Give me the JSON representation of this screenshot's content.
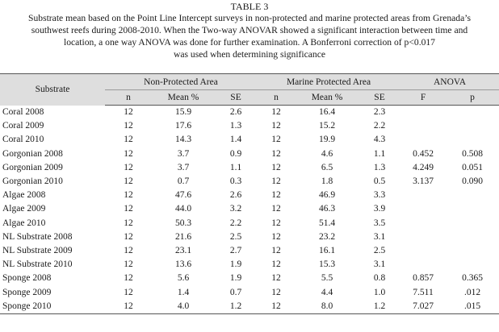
{
  "table_label": "TABLE 3",
  "caption_lines": [
    "Substrate mean based on the Point Line Intercept surveys in non-protected and marine protected areas from Grenada’s",
    "southwest reefs during 2008-2010. When the Two-way ANOVAR showed a significant interaction between time and",
    "location, a one way ANOVA was done for further examination. A Bonferroni correction of p<0.017",
    "was used when determining significance"
  ],
  "header": {
    "substrate": "Substrate",
    "non_protected": "Non-Protected Area",
    "marine_protected": "Marine Protected Area",
    "anova": "ANOVA",
    "n": "n",
    "mean": "Mean %",
    "se": "SE",
    "f": "F",
    "p": "p"
  },
  "rows": [
    {
      "substrate": "Coral 2008",
      "np_n": "12",
      "np_mean": "15.9",
      "np_se": "2.6",
      "mp_n": "12",
      "mp_mean": "16.4",
      "mp_se": "2.3",
      "f": "",
      "p": ""
    },
    {
      "substrate": "Coral 2009",
      "np_n": "12",
      "np_mean": "17.6",
      "np_se": "1.3",
      "mp_n": "12",
      "mp_mean": "15.2",
      "mp_se": "2.2",
      "f": "",
      "p": ""
    },
    {
      "substrate": "Coral 2010",
      "np_n": "12",
      "np_mean": "14.3",
      "np_se": "1.4",
      "mp_n": "12",
      "mp_mean": "19.9",
      "mp_se": "4.3",
      "f": "",
      "p": ""
    },
    {
      "substrate": "Gorgonian 2008",
      "np_n": "12",
      "np_mean": "3.7",
      "np_se": "0.9",
      "mp_n": "12",
      "mp_mean": "4.6",
      "mp_se": "1.1",
      "f": "0.452",
      "p": "0.508"
    },
    {
      "substrate": "Gorgonian 2009",
      "np_n": "12",
      "np_mean": "3.7",
      "np_se": "1.1",
      "mp_n": "12",
      "mp_mean": "6.5",
      "mp_se": "1.3",
      "f": "4.249",
      "p": "0.051"
    },
    {
      "substrate": "Gorgonian 2010",
      "np_n": "12",
      "np_mean": "0.7",
      "np_se": "0.3",
      "mp_n": "12",
      "mp_mean": "1.8",
      "mp_se": "0.5",
      "f": "3.137",
      "p": "0.090"
    },
    {
      "substrate": "Algae 2008",
      "np_n": "12",
      "np_mean": "47.6",
      "np_se": "2.6",
      "mp_n": "12",
      "mp_mean": "46.9",
      "mp_se": "3.3",
      "f": "",
      "p": ""
    },
    {
      "substrate": "Algae 2009",
      "np_n": "12",
      "np_mean": "44.0",
      "np_se": "3.2",
      "mp_n": "12",
      "mp_mean": "46.3",
      "mp_se": "3.9",
      "f": "",
      "p": ""
    },
    {
      "substrate": "Algae 2010",
      "np_n": "12",
      "np_mean": "50.3",
      "np_se": "2.2",
      "mp_n": "12",
      "mp_mean": "51.4",
      "mp_se": "3.5",
      "f": "",
      "p": ""
    },
    {
      "substrate": "NL Substrate 2008",
      "np_n": "12",
      "np_mean": "21.6",
      "np_se": "2.5",
      "mp_n": "12",
      "mp_mean": "23.2",
      "mp_se": "3.1",
      "f": "",
      "p": ""
    },
    {
      "substrate": "NL Substrate 2009",
      "np_n": "12",
      "np_mean": "23.1",
      "np_se": "2.7",
      "mp_n": "12",
      "mp_mean": "16.1",
      "mp_se": "2.5",
      "f": "",
      "p": ""
    },
    {
      "substrate": "NL Substrate 2010",
      "np_n": "12",
      "np_mean": "13.6",
      "np_se": "1.9",
      "mp_n": "12",
      "mp_mean": "15.3",
      "mp_se": "3.1",
      "f": "",
      "p": ""
    },
    {
      "substrate": "Sponge 2008",
      "np_n": "12",
      "np_mean": "5.6",
      "np_se": "1.9",
      "mp_n": "12",
      "mp_mean": "5.5",
      "mp_se": "0.8",
      "f": "0.857",
      "p": "0.365"
    },
    {
      "substrate": "Sponge 2009",
      "np_n": "12",
      "np_mean": "1.4",
      "np_se": "0.7",
      "mp_n": "12",
      "mp_mean": "4.4",
      "mp_se": "1.0",
      "f": "7.511",
      "p": ".012"
    },
    {
      "substrate": "Sponge 2010",
      "np_n": "12",
      "np_mean": "4.0",
      "np_se": "1.2",
      "mp_n": "12",
      "mp_mean": "8.0",
      "mp_se": "1.2",
      "f": "7.027",
      "p": ".015"
    }
  ]
}
